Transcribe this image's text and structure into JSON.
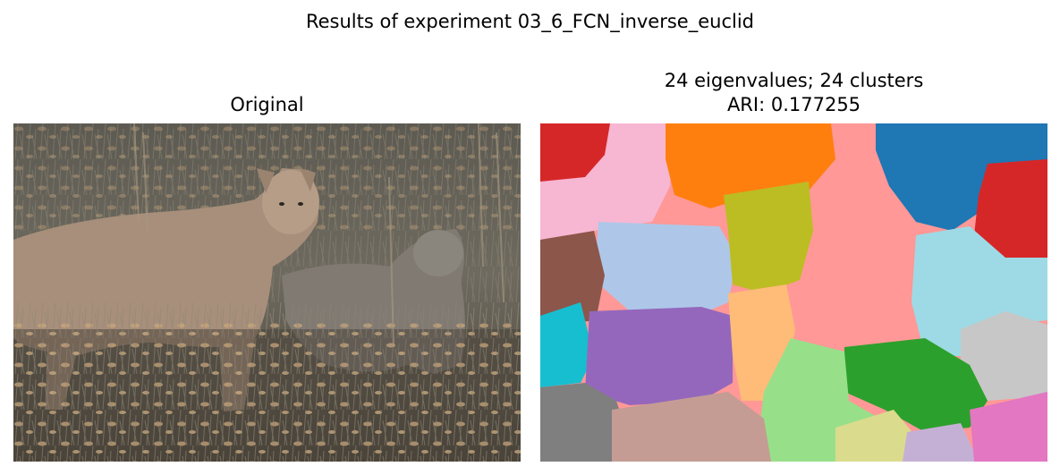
{
  "figure": {
    "suptitle": "Results of experiment 03_6_FCN_inverse_euclid"
  },
  "left_panel": {
    "title": "Original",
    "image_description_icon": "photo-cougar-with-cub-in-dry-grass"
  },
  "right_panel": {
    "title_line1": "24 eigenvalues; 24 clusters",
    "title_line2": "ARI: 0.177255",
    "segmentation": {
      "num_eigenvalues": 24,
      "num_clusters": 24,
      "ari": 0.177255
    }
  },
  "colors": {
    "red": "#d62728",
    "pink": "#f7b6d2",
    "orange": "#ff7f0e",
    "salmon": "#ff9896",
    "blue": "#1f77b4",
    "light_blue": "#aec7e8",
    "olive": "#bcbd22",
    "brown": "#8c564b",
    "cyan": "#17becf",
    "light_cyan": "#9edae5",
    "purple": "#9467bd",
    "light_orange": "#ffbb78",
    "green": "#2ca02c",
    "light_green": "#98df8a",
    "gray": "#7f7f7f",
    "light_gray": "#c7c7c7",
    "tan": "#c49c94",
    "khaki": "#dbdb8d",
    "lavender": "#c5b0d5",
    "magenta": "#e377c2"
  }
}
